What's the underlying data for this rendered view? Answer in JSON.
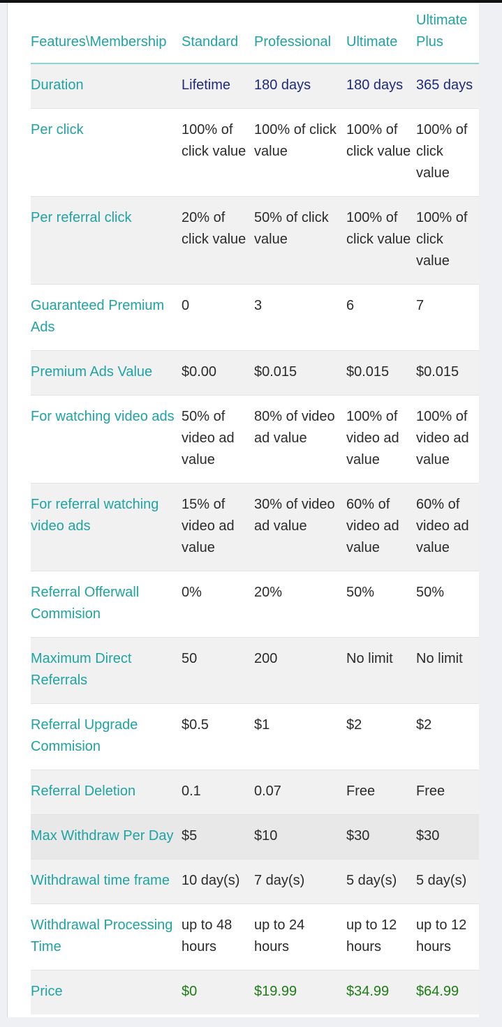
{
  "header": {
    "features": "Features\\Membership",
    "standard": "Standard",
    "professional": "Professional",
    "ultimate": "Ultimate",
    "ultimate_plus": "Ultimate Plus"
  },
  "rows": [
    {
      "label": "Duration",
      "standard": "Lifetime",
      "professional": "180 days",
      "ultimate": "180 days",
      "ultimate_plus": "365 days"
    },
    {
      "label": "Per click",
      "standard": "100% of click value",
      "professional": "100% of click value",
      "ultimate": "100% of click value",
      "ultimate_plus": "100% of click value"
    },
    {
      "label": "Per referral click",
      "standard": "20% of click value",
      "professional": "50% of click value",
      "ultimate": "100% of click value",
      "ultimate_plus": "100% of click value"
    },
    {
      "label": "Guaranteed Premium Ads",
      "standard": "0",
      "professional": "3",
      "ultimate": "6",
      "ultimate_plus": "7"
    },
    {
      "label": "Premium Ads Value",
      "standard": "$0.00",
      "professional": "$0.015",
      "ultimate": "$0.015",
      "ultimate_plus": "$0.015"
    },
    {
      "label": "For watching video ads",
      "standard": "50% of video ad value",
      "professional": "80% of video ad value",
      "ultimate": "100% of video ad value",
      "ultimate_plus": "100% of video ad value"
    },
    {
      "label": "For referral watching video ads",
      "standard": "15% of video ad value",
      "professional": "30% of video ad value",
      "ultimate": "60% of video ad value",
      "ultimate_plus": "60% of video ad value"
    },
    {
      "label": "Referral Offerwall Commision",
      "standard": "0%",
      "professional": "20%",
      "ultimate": "50%",
      "ultimate_plus": "50%"
    },
    {
      "label": "Maximum Direct Referrals",
      "standard": "50",
      "professional": "200",
      "ultimate": "No limit",
      "ultimate_plus": "No limit"
    },
    {
      "label": "Referral Upgrade Commision",
      "standard": "$0.5",
      "professional": "$1",
      "ultimate": "$2",
      "ultimate_plus": "$2"
    },
    {
      "label": "Referral Deletion",
      "standard": "0.1",
      "professional": "0.07",
      "ultimate": "Free",
      "ultimate_plus": "Free"
    },
    {
      "label": "Max Withdraw Per Day",
      "standard": "$5",
      "professional": "$10",
      "ultimate": "$30",
      "ultimate_plus": "$30"
    },
    {
      "label": "Withdrawal time frame",
      "standard": "10 day(s)",
      "professional": "7 day(s)",
      "ultimate": "5 day(s)",
      "ultimate_plus": "5 day(s)"
    },
    {
      "label": "Withdrawal Processing Time",
      "standard": "up to 48 hours",
      "professional": "up to 24 hours",
      "ultimate": "up to 12 hours",
      "ultimate_plus": "up to 12 hours"
    },
    {
      "label": "Price",
      "standard": "$0",
      "professional": "$19.99",
      "ultimate": "$34.99",
      "ultimate_plus": "$64.99"
    }
  ],
  "colors": {
    "accent": "#1fa3a3",
    "duration_values": "#1f2a7a",
    "price_values": "#1e7d16"
  }
}
